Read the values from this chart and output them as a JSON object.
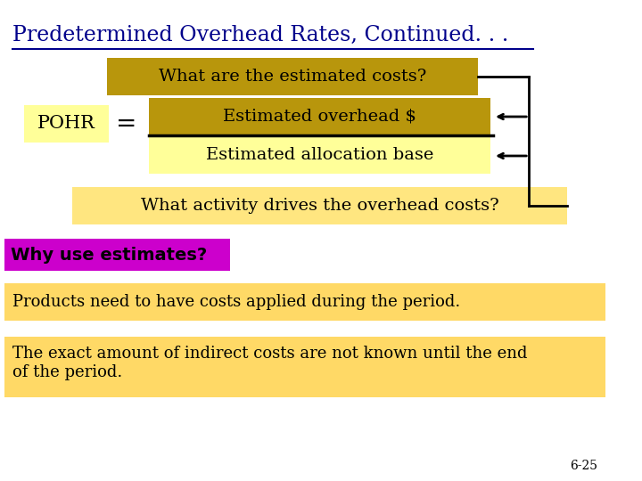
{
  "title": "Predetermined Overhead Rates, Continued. . .",
  "title_color": "#00008B",
  "bg_color": "#FFFFFF",
  "box1_text": "What are the estimated costs?",
  "box1_color": "#B8960C",
  "box1_text_color": "#000000",
  "pohr_box_color": "#FFFF99",
  "pohr_text": "POHR",
  "equals_text": "=",
  "numerator_text": "Estimated overhead $",
  "numerator_color": "#B8960C",
  "denominator_text": "Estimated allocation base",
  "denominator_color": "#FFFF99",
  "box3_text": "What activity drives the overhead costs?",
  "box3_color": "#FFE680",
  "box4_text": "Why use estimates?",
  "box4_bg": "#CC00CC",
  "box4_text_color": "#000000",
  "box5_text": "Products need to have costs applied during the period.",
  "box5_color": "#FFD966",
  "box6_text": "The exact amount of indirect costs are not known until the end\nof the period.",
  "box6_color": "#FFD966",
  "footnote": "6-25"
}
